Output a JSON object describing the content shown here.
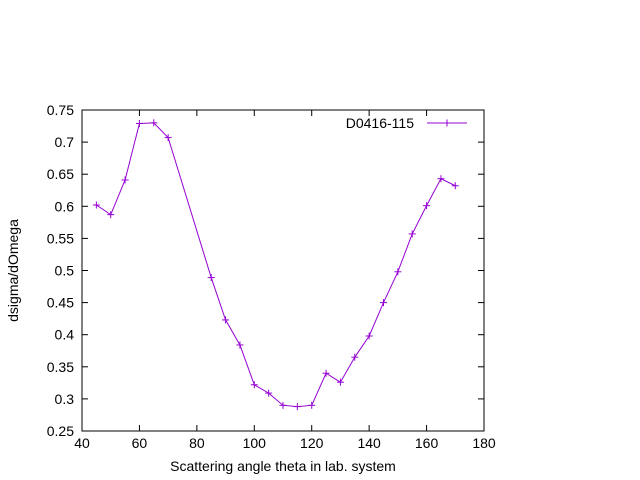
{
  "chart_data": {
    "type": "line",
    "title": "",
    "xlabel": "Scattering angle theta in lab. system",
    "ylabel": "dsigma/dOmega",
    "xlim": [
      40,
      180
    ],
    "ylim": [
      0.25,
      0.75
    ],
    "xticks": [
      40,
      60,
      80,
      100,
      120,
      140,
      160,
      180
    ],
    "yticks": [
      0.25,
      0.3,
      0.35,
      0.4,
      0.45,
      0.5,
      0.55,
      0.6,
      0.65,
      0.7,
      0.75
    ],
    "grid": false,
    "legend": "top-right",
    "series": [
      {
        "name": "D0416-115",
        "color": "#9400d3",
        "marker": "plus",
        "x": [
          45,
          50,
          55,
          60,
          65,
          70,
          85,
          90,
          95,
          100,
          105,
          110,
          115,
          120,
          125,
          130,
          135,
          140,
          145,
          150,
          155,
          160,
          165,
          170
        ],
        "y": [
          0.602,
          0.587,
          0.641,
          0.729,
          0.73,
          0.707,
          0.489,
          0.423,
          0.384,
          0.322,
          0.309,
          0.29,
          0.288,
          0.29,
          0.34,
          0.326,
          0.365,
          0.398,
          0.45,
          0.498,
          0.557,
          0.601,
          0.643,
          0.632
        ]
      }
    ]
  }
}
